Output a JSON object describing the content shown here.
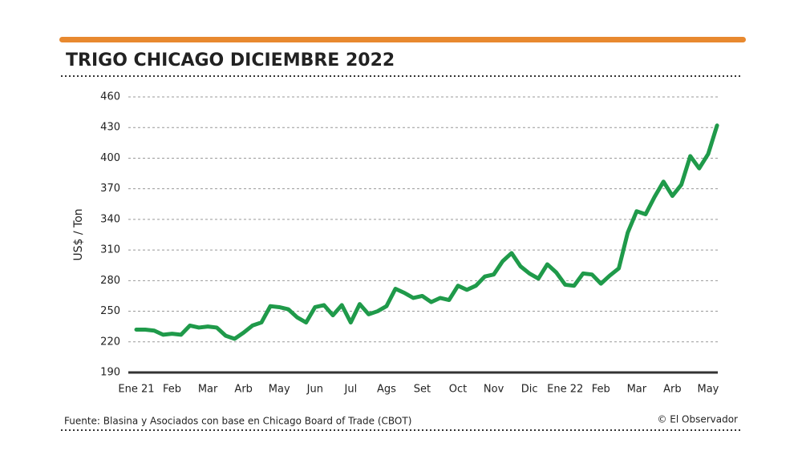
{
  "chart_data": {
    "type": "line",
    "title": "TRIGO CHICAGO DICIEMBRE 2022",
    "y_label": "US$ / Ton",
    "source": "Fuente: Blasina y Asociados con base en Chicago Board of Trade (CBOT)",
    "credit": "© El Observador",
    "categories": [
      "Ene 21",
      null,
      null,
      null,
      "Feb",
      null,
      null,
      null,
      "Mar",
      null,
      null,
      null,
      "Arb",
      null,
      null,
      null,
      "May",
      null,
      null,
      null,
      "Jun",
      null,
      null,
      null,
      "Jul",
      null,
      null,
      null,
      "Ags",
      null,
      null,
      null,
      "Set",
      null,
      null,
      null,
      "Oct",
      null,
      null,
      null,
      "Nov",
      null,
      null,
      null,
      "Dic",
      null,
      null,
      null,
      "Ene 22",
      null,
      null,
      null,
      "Feb",
      null,
      null,
      null,
      "Mar",
      null,
      null,
      null,
      "Arb",
      null,
      null,
      null,
      "May",
      null
    ],
    "series": [
      {
        "name": "Trigo Chicago",
        "color": "#1f9a4a",
        "values": [
          232,
          232,
          231,
          227,
          228,
          227,
          236,
          234,
          235,
          234,
          226,
          223,
          229,
          236,
          239,
          255,
          254,
          252,
          244,
          239,
          254,
          256,
          246,
          256,
          239,
          257,
          247,
          250,
          255,
          272,
          268,
          263,
          265,
          259,
          263,
          261,
          275,
          271,
          275,
          284,
          286,
          299,
          307,
          294,
          287,
          282,
          296,
          288,
          276,
          275,
          287,
          286,
          277,
          285,
          292,
          327,
          348,
          345,
          362,
          377,
          363,
          374,
          402,
          390,
          404,
          432
        ]
      }
    ],
    "ylim": [
      190,
      460
    ],
    "yticks": [
      190,
      220,
      250,
      280,
      310,
      340,
      370,
      400,
      430,
      460
    ],
    "grid": true
  }
}
